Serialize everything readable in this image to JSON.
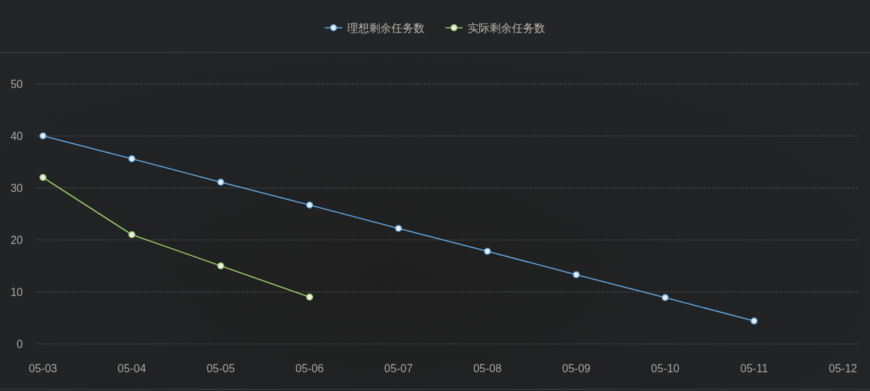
{
  "chart_data": {
    "type": "line",
    "categories": [
      "05-03",
      "05-04",
      "05-05",
      "05-06",
      "05-07",
      "05-08",
      "05-09",
      "05-10",
      "05-11",
      "05-12"
    ],
    "series": [
      {
        "name": "理想剩余任务数",
        "color": "#65b0ec",
        "values": [
          40,
          35.6,
          31.1,
          26.7,
          22.2,
          17.8,
          13.3,
          8.9,
          4.4,
          null
        ]
      },
      {
        "name": "实际剩余任务数",
        "color": "#9fd46a",
        "values": [
          32,
          21,
          15,
          9,
          null,
          null,
          null,
          null,
          null,
          null
        ]
      }
    ],
    "ylim": [
      0,
      50
    ],
    "yticks": [
      0,
      10,
      20,
      30,
      40,
      50
    ],
    "grid": "y",
    "legend": "top",
    "marker": "circle",
    "line_style": "solid"
  }
}
